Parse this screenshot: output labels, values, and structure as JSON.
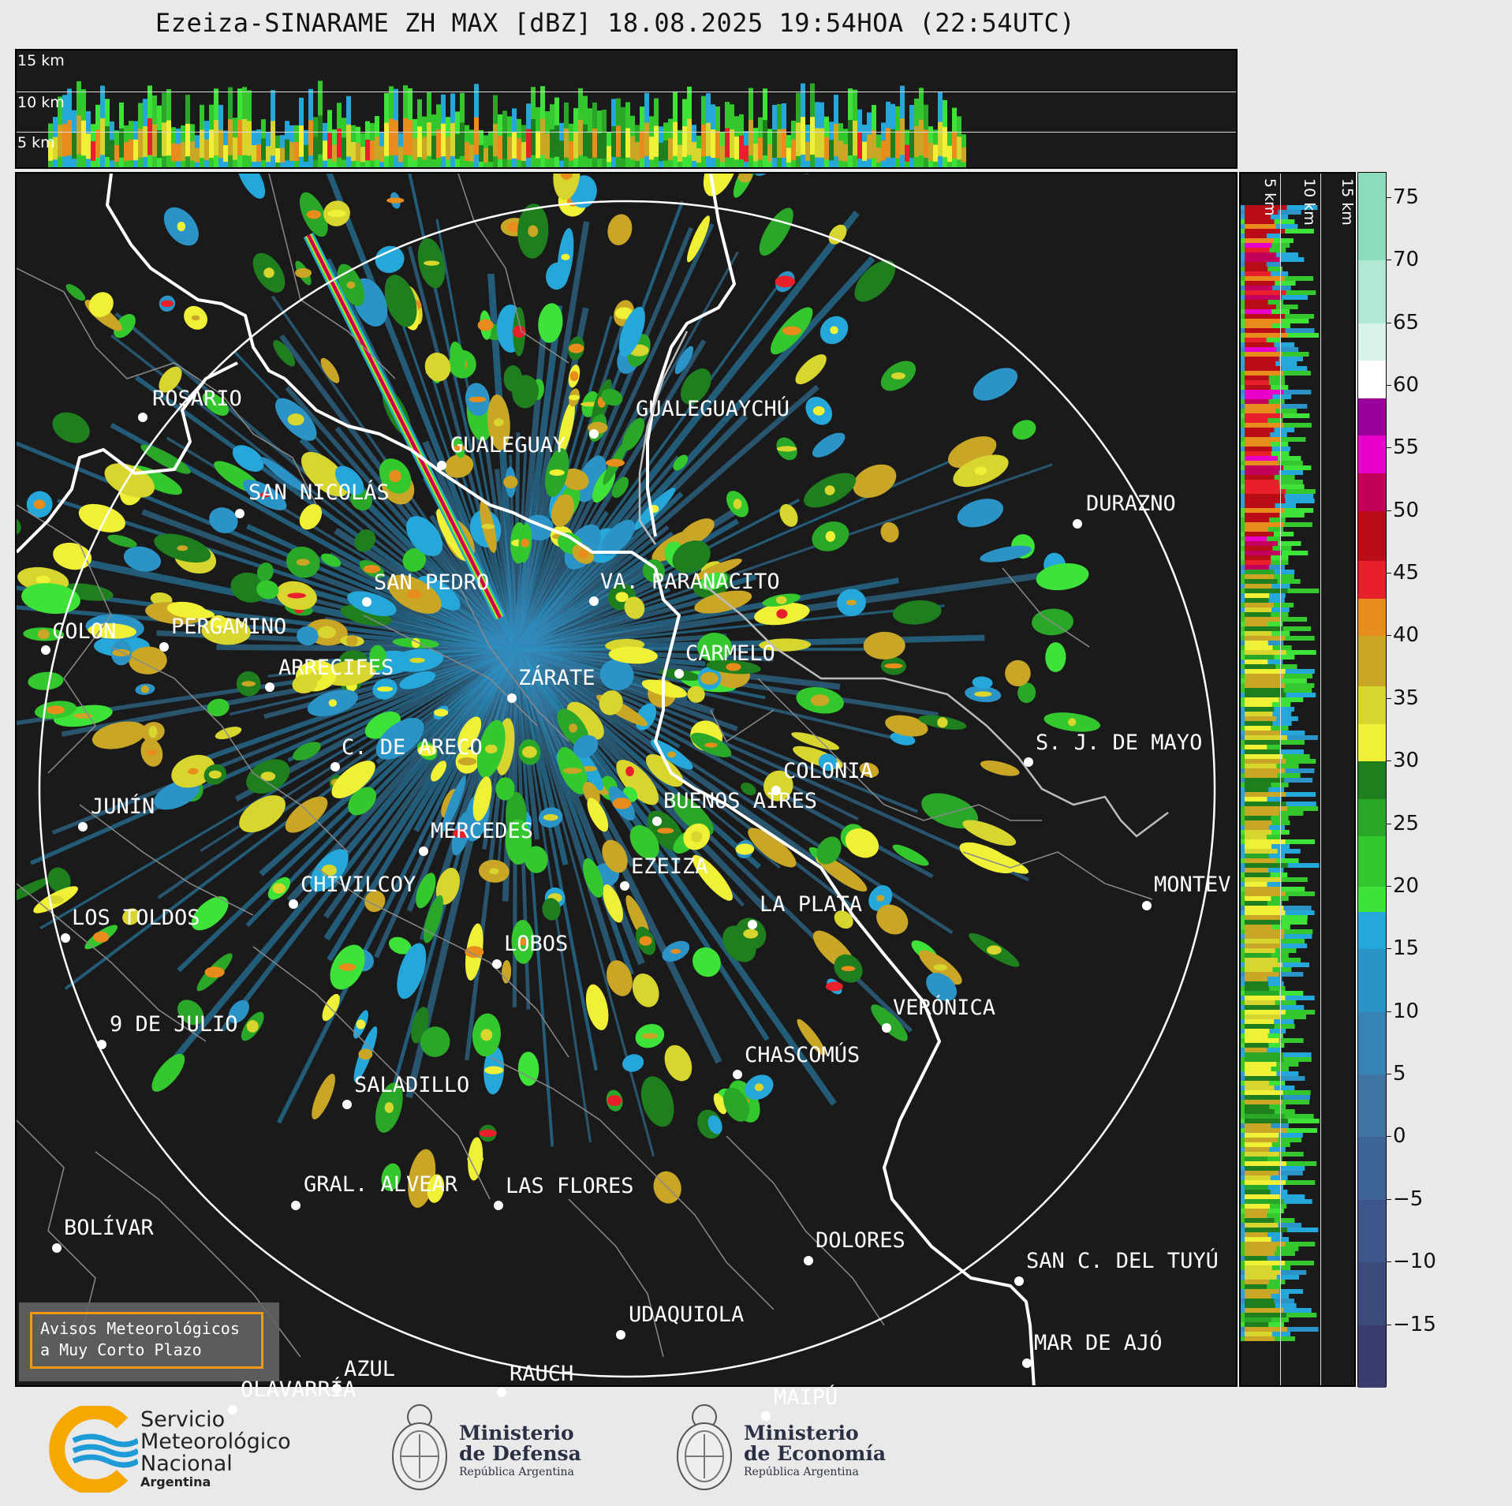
{
  "title": "Ezeiza-SINARAME ZH MAX [dBZ] 18.08.2025 19:54HOA (22:54UTC)",
  "height_labels": [
    "15 km",
    "10 km",
    "5 km"
  ],
  "colorbar": {
    "ticks": [
      "75",
      "70",
      "65",
      "60",
      "55",
      "50",
      "45",
      "40",
      "35",
      "30",
      "25",
      "20",
      "15",
      "10",
      "5",
      "0",
      "−5",
      "−10",
      "−15"
    ],
    "tick_values": [
      75,
      70,
      65,
      60,
      55,
      50,
      45,
      40,
      35,
      30,
      25,
      20,
      15,
      10,
      5,
      0,
      -5,
      -10,
      -15
    ],
    "range": [
      -20,
      77
    ],
    "bands": [
      {
        "from": -20,
        "to": -15,
        "color": "#3b3d6e"
      },
      {
        "from": -15,
        "to": -10,
        "color": "#3d4a7c"
      },
      {
        "from": -10,
        "to": -5,
        "color": "#3e568a"
      },
      {
        "from": -5,
        "to": 0,
        "color": "#3f6596"
      },
      {
        "from": 0,
        "to": 5,
        "color": "#3f74a3"
      },
      {
        "from": 5,
        "to": 10,
        "color": "#3784b4"
      },
      {
        "from": 10,
        "to": 15,
        "color": "#2c93c6"
      },
      {
        "from": 15,
        "to": 18,
        "color": "#26a7d9"
      },
      {
        "from": 18,
        "to": 20,
        "color": "#3fe238"
      },
      {
        "from": 20,
        "to": 24,
        "color": "#34c82e"
      },
      {
        "from": 24,
        "to": 27,
        "color": "#2aa628"
      },
      {
        "from": 27,
        "to": 30,
        "color": "#1f7f1f"
      },
      {
        "from": 30,
        "to": 33,
        "color": "#f0f036"
      },
      {
        "from": 33,
        "to": 36,
        "color": "#d8d62e"
      },
      {
        "from": 36,
        "to": 40,
        "color": "#c9a626"
      },
      {
        "from": 40,
        "to": 43,
        "color": "#e88d1c"
      },
      {
        "from": 43,
        "to": 46,
        "color": "#e8202c"
      },
      {
        "from": 46,
        "to": 50,
        "color": "#b80d17"
      },
      {
        "from": 50,
        "to": 53,
        "color": "#c2005c"
      },
      {
        "from": 53,
        "to": 56,
        "color": "#e600c8"
      },
      {
        "from": 56,
        "to": 59,
        "color": "#990099"
      },
      {
        "from": 59,
        "to": 62,
        "color": "#ffffff"
      },
      {
        "from": 62,
        "to": 65,
        "color": "#d8f4ea"
      },
      {
        "from": 65,
        "to": 70,
        "color": "#b0e8d4"
      },
      {
        "from": 70,
        "to": 77,
        "color": "#8adcbd"
      }
    ]
  },
  "cities": [
    {
      "name": "ROSARIO"
    },
    {
      "name": "GUALEGUAY"
    },
    {
      "name": "GUALEGUAYCHÚ"
    },
    {
      "name": "SAN NICOLÁS"
    },
    {
      "name": "DURAZNO"
    },
    {
      "name": "SAN PEDRO"
    },
    {
      "name": "VA. PARANACITO"
    },
    {
      "name": "COLON"
    },
    {
      "name": "PERGAMINO"
    },
    {
      "name": "CARMELO"
    },
    {
      "name": "ARRECIFES"
    },
    {
      "name": "ZÁRATE"
    },
    {
      "name": "S. J. DE MAYO"
    },
    {
      "name": "C. DE ARECO"
    },
    {
      "name": "COLONIA"
    },
    {
      "name": "JUNÍN"
    },
    {
      "name": "BUENOS AIRES"
    },
    {
      "name": "MERCEDES"
    },
    {
      "name": "MONTEV"
    },
    {
      "name": "EZEIZA"
    },
    {
      "name": "CHIVILCOY"
    },
    {
      "name": "LA PLATA"
    },
    {
      "name": "LOS TOLDOS"
    },
    {
      "name": "LOBOS"
    },
    {
      "name": "VERÓNICA"
    },
    {
      "name": "9 DE JULIO"
    },
    {
      "name": "CHASCOMÚS"
    },
    {
      "name": "SALADILLO"
    },
    {
      "name": "GRAL. ALVEAR"
    },
    {
      "name": "LAS FLORES"
    },
    {
      "name": "BOLÍVAR"
    },
    {
      "name": "DOLORES"
    },
    {
      "name": "SAN C. DEL TUYÚ"
    },
    {
      "name": "UDAQUIOLA"
    },
    {
      "name": "MAR DE AJÓ"
    },
    {
      "name": "AZUL"
    },
    {
      "name": "RAUCH"
    },
    {
      "name": "OLAVARRÍA"
    },
    {
      "name": "MAIPÚ"
    }
  ],
  "alert": {
    "line1": "Avisos Meteorológicos",
    "line2": "a Muy Corto Plazo"
  },
  "logos": {
    "smn": {
      "line1": "Servicio",
      "line2": "Meteorológico",
      "line3": "Nacional",
      "line4": "Argentina"
    },
    "defensa": {
      "line1": "Ministerio",
      "line2": "de Defensa",
      "line3": "República Argentina"
    },
    "economia": {
      "line1": "Ministerio",
      "line2": "de Economía",
      "line3": "República Argentina"
    }
  },
  "colors": {
    "background": "#1a1a1a",
    "page": "#e9e9e9",
    "accent_orange": "#f59a10",
    "smn_blue": "#1e9ad6"
  }
}
